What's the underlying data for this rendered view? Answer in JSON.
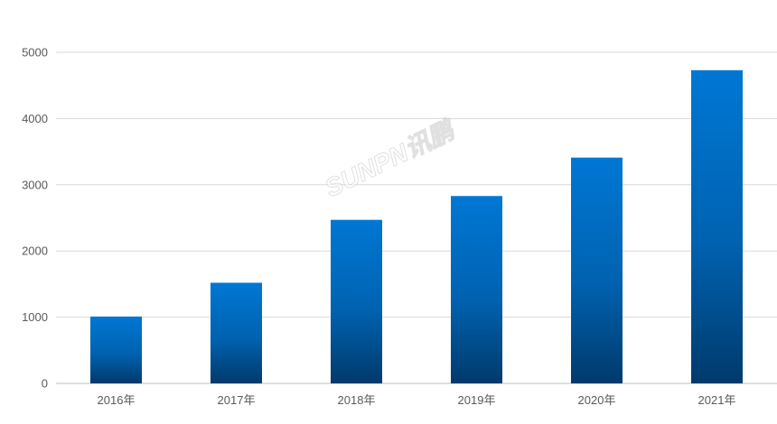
{
  "chart_data": {
    "type": "bar",
    "categories": [
      "2016年",
      "2017年",
      "2018年",
      "2019年",
      "2020年",
      "2021年"
    ],
    "values": [
      1010,
      1520,
      2470,
      2830,
      3410,
      4730
    ],
    "title": "",
    "xlabel": "",
    "ylabel": "",
    "ylim": [
      0,
      5000
    ],
    "yticks": [
      0,
      1000,
      2000,
      3000,
      4000,
      5000
    ],
    "grid": true,
    "legend": "none",
    "colors": {
      "bar_top": "#0077d4",
      "bar_bottom": "#003a6c",
      "grid": "#d9d9d9",
      "axis": "#bfbfbf",
      "text": "#595959"
    }
  },
  "watermark": {
    "text": "SUNPN讯鹏"
  }
}
